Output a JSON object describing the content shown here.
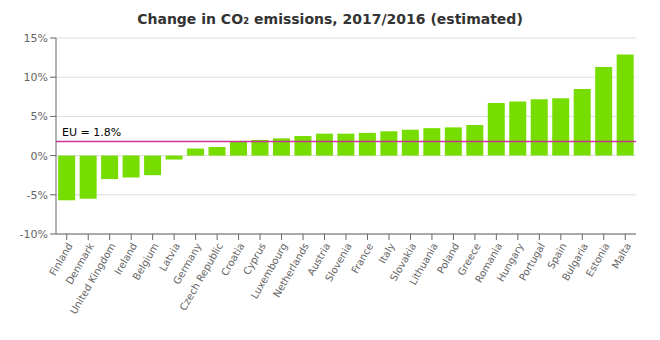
{
  "chart_data": {
    "type": "bar",
    "title": "Change in CO₂ emissions, 2017/2016 (estimated)",
    "categories": [
      "Finland",
      "Denmark",
      "United Kingdom",
      "Ireland",
      "Belgium",
      "Latvia",
      "Germany",
      "Czech Republic",
      "Croatia",
      "Cyprus",
      "Luxembourg",
      "Netherlands",
      "Austria",
      "Slovenia",
      "France",
      "Italy",
      "Slovakia",
      "Lithuania",
      "Poland",
      "Greece",
      "Romania",
      "Hungary",
      "Portugal",
      "Spain",
      "Bulgaria",
      "Estonia",
      "Malta"
    ],
    "values": [
      -5.7,
      -5.5,
      -3.0,
      -2.8,
      -2.5,
      -0.5,
      0.9,
      1.1,
      1.8,
      2.0,
      2.2,
      2.5,
      2.8,
      2.8,
      2.9,
      3.1,
      3.3,
      3.5,
      3.6,
      3.9,
      6.7,
      6.9,
      7.2,
      7.3,
      8.5,
      11.3,
      12.9
    ],
    "color": "#77dd00",
    "ylim": [
      -10,
      15
    ],
    "yticks": [
      {
        "value": -10,
        "label": "-10%"
      },
      {
        "value": -5,
        "label": "-5%"
      },
      {
        "value": 0,
        "label": "0%"
      },
      {
        "value": 5,
        "label": "5%"
      },
      {
        "value": 10,
        "label": "10%"
      },
      {
        "value": 15,
        "label": "15%"
      }
    ],
    "grid": true,
    "annotations": [
      {
        "text": "EU = 1.8%",
        "y": 1.8,
        "color": "#cc3399"
      }
    ]
  }
}
